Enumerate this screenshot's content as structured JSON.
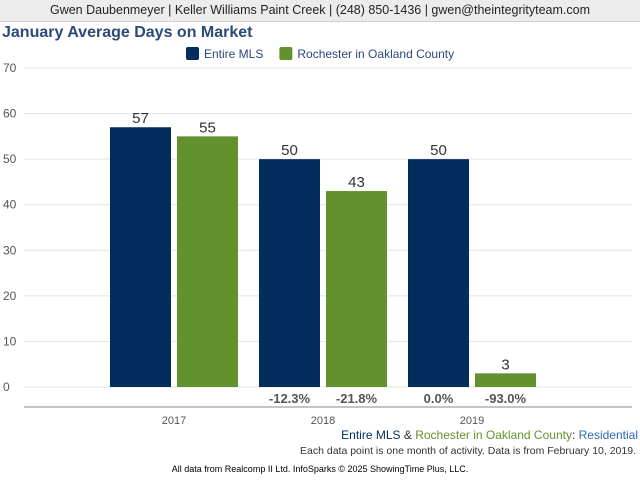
{
  "header": {
    "contact_line": "Gwen Daubenmeyer | Keller Williams Paint Creek | (248) 850-1436 | gwen@theintegrityteam.com"
  },
  "colors": {
    "entire_mls": "#032d5c",
    "rochester": "#63912e",
    "title": "#2b4a7a",
    "residential": "#2b6bb3"
  },
  "chart_data": {
    "type": "bar",
    "title": "January Average Days on Market",
    "categories": [
      "2017",
      "2018",
      "2019"
    ],
    "series": [
      {
        "name": "Entire MLS",
        "values": [
          57,
          50,
          50
        ],
        "changes": [
          "",
          "-12.3%",
          "0.0%"
        ]
      },
      {
        "name": "Rochester in Oakland County",
        "values": [
          55,
          43,
          3
        ],
        "changes": [
          "",
          "-21.8%",
          "-93.0%"
        ]
      }
    ],
    "ylim": [
      0,
      70
    ],
    "yticks": [
      0,
      10,
      20,
      30,
      40,
      50,
      60,
      70
    ],
    "grid": true,
    "legend": "top-center"
  },
  "footer": {
    "series_part1": "Entire MLS",
    "series_amp": " & ",
    "series_part2": "Rochester in Oakland County",
    "series_colon": ": ",
    "series_part3": "Residential",
    "note": "Each data point is one month of activity. Data is from February 10, 2019.",
    "credit": "All data from Realcomp II Ltd. InfoSparks © 2025 ShowingTime Plus, LLC."
  }
}
